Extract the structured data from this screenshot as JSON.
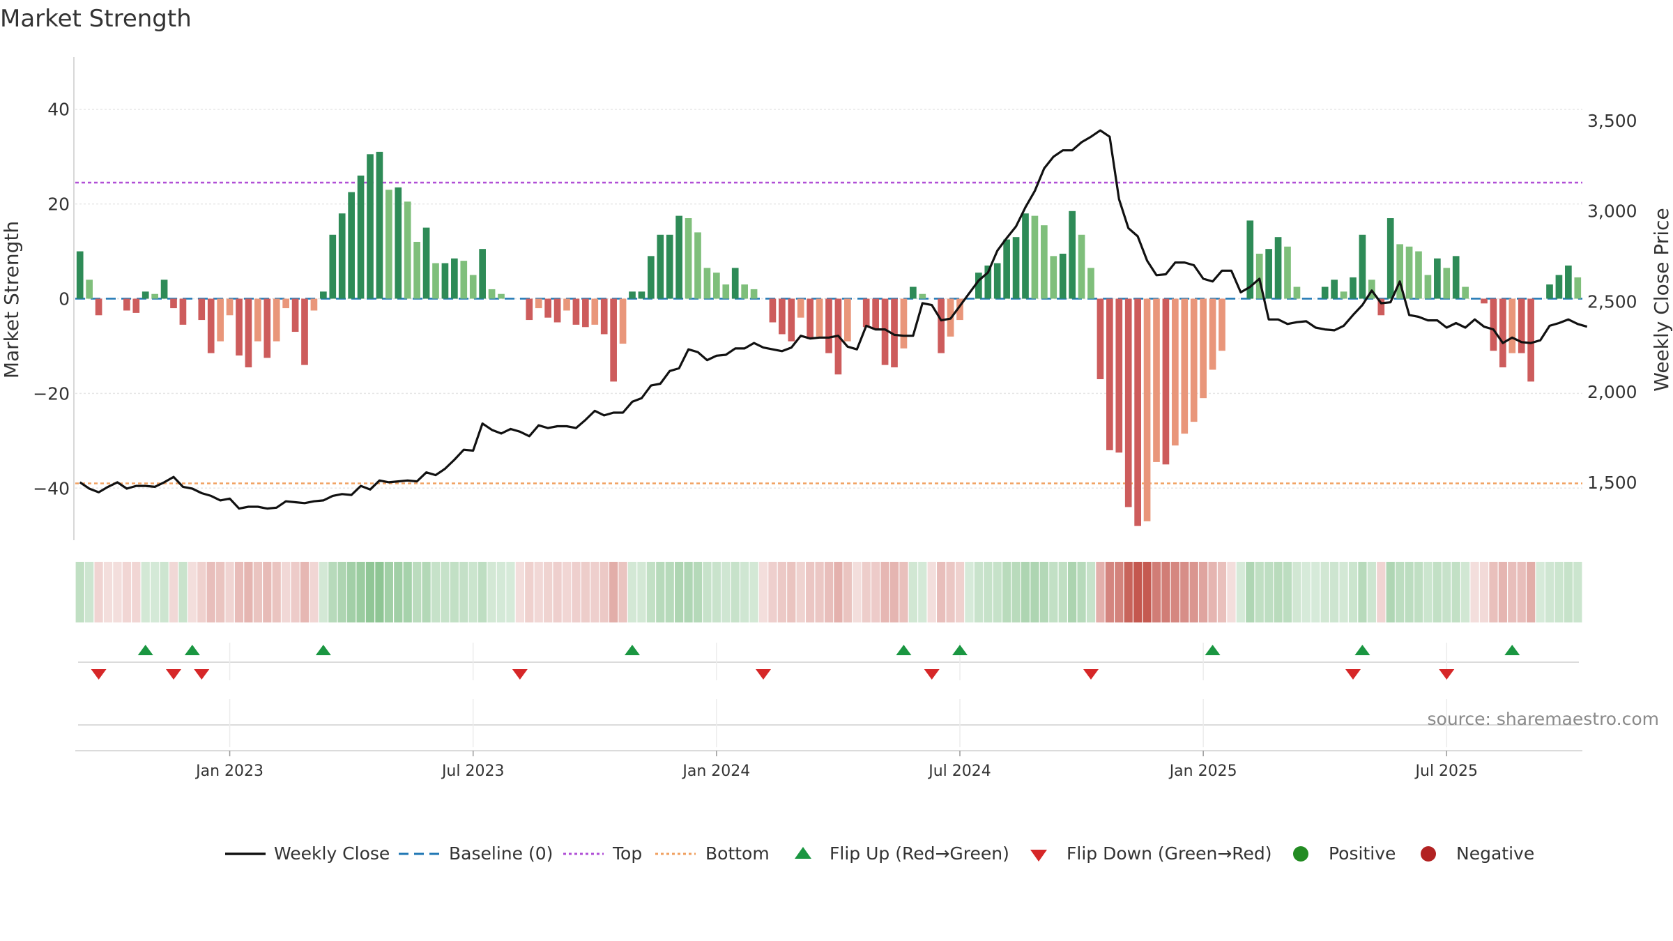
{
  "chart_data": {
    "type": "bar+line",
    "title": "Market Strength",
    "ylabel_left": "Market Strength",
    "ylabel_right": "Weekly Close Price",
    "source": "source: sharemaestro.com",
    "x_tick_labels": [
      "Jan 2023",
      "Jul 2023",
      "Jan 2024",
      "Jul 2024",
      "Jan 2025",
      "Jul 2025"
    ],
    "x_tick_weeks": [
      16,
      42,
      68,
      94,
      120,
      146
    ],
    "ylim_left": [
      -51,
      51
    ],
    "yticks_left": [
      40,
      20,
      0,
      -20,
      -40
    ],
    "ytick_labels_left": [
      "40",
      "20",
      "0",
      "−20",
      "−40"
    ],
    "ylim_right": [
      1180,
      3850
    ],
    "yticks_right": [
      3500,
      3000,
      2500,
      2000,
      1500
    ],
    "ytick_labels_right": [
      "3,500",
      "3,000",
      "2,500",
      "2,000",
      "1,500"
    ],
    "top_line": 24.5,
    "bottom_line": -39,
    "baseline": 0,
    "strength": [
      10,
      4,
      -3.5,
      0,
      0,
      -2.5,
      -3,
      1.5,
      1,
      4,
      -2,
      -5.5,
      0,
      -4.5,
      -11.5,
      -9,
      -3.5,
      -12,
      -14.5,
      -9,
      -12.5,
      -9,
      -2,
      -7,
      -14,
      -2.5,
      1.5,
      13.5,
      18,
      22.5,
      26,
      30.5,
      31,
      23,
      23.5,
      20.5,
      12,
      15,
      7.5,
      7.5,
      8.5,
      8,
      5,
      10.5,
      2,
      1,
      0,
      0,
      -4.5,
      -2,
      -4,
      -5,
      -2.5,
      -5.5,
      -6,
      -5.5,
      -7.5,
      -17.5,
      -9.5,
      1.5,
      1.5,
      9,
      13.5,
      13.5,
      17.5,
      17,
      14,
      6.5,
      5.5,
      3,
      6.5,
      3,
      2,
      0,
      -5,
      -7.5,
      -9,
      -4,
      -8.5,
      -8,
      -11.5,
      -16,
      -9,
      0,
      -6,
      -6.5,
      -14,
      -14.5,
      -10.5,
      2.5,
      1,
      0,
      -11.5,
      -8,
      -4.5,
      0,
      5.5,
      7,
      7.5,
      12.5,
      13,
      18,
      17.5,
      15.5,
      9,
      9.5,
      18.5,
      13.5,
      6.5,
      -17,
      -32,
      -32.5,
      -44,
      -48,
      -47,
      -34.5,
      -35,
      -31,
      -28.5,
      -26,
      -21,
      -15,
      -11,
      0,
      0,
      16.5,
      9.5,
      10.5,
      13,
      11,
      2.5,
      0,
      0,
      2.5,
      4,
      1.5,
      4.5,
      13.5,
      4,
      -3.5,
      17,
      11.5,
      11,
      10,
      5,
      8.5,
      6.5,
      9,
      2.5,
      0,
      -1,
      -11,
      -14.5,
      -11.5,
      -11.5,
      -17.5,
      0,
      3,
      5,
      7,
      4.5
    ],
    "close": [
      1500,
      1465,
      1445,
      1475,
      1500,
      1465,
      1480,
      1480,
      1475,
      1500,
      1530,
      1475,
      1465,
      1440,
      1425,
      1400,
      1410,
      1355,
      1365,
      1365,
      1355,
      1360,
      1395,
      1390,
      1385,
      1395,
      1400,
      1425,
      1435,
      1430,
      1480,
      1460,
      1510,
      1500,
      1505,
      1510,
      1505,
      1555,
      1540,
      1575,
      1625,
      1680,
      1675,
      1825,
      1790,
      1770,
      1795,
      1780,
      1755,
      1815,
      1800,
      1810,
      1810,
      1800,
      1845,
      1895,
      1870,
      1885,
      1885,
      1945,
      1965,
      2035,
      2045,
      2115,
      2130,
      2235,
      2220,
      2175,
      2200,
      2205,
      2240,
      2240,
      2270,
      2245,
      2235,
      2225,
      2245,
      2310,
      2295,
      2300,
      2300,
      2310,
      2250,
      2235,
      2365,
      2345,
      2345,
      2315,
      2310,
      2310,
      2490,
      2480,
      2395,
      2405,
      2475,
      2545,
      2615,
      2660,
      2780,
      2850,
      2915,
      3020,
      3110,
      3235,
      3300,
      3335,
      3335,
      3380,
      3410,
      3445,
      3410,
      3065,
      2905,
      2860,
      2725,
      2645,
      2650,
      2715,
      2715,
      2700,
      2625,
      2610,
      2670,
      2670,
      2550,
      2580,
      2625,
      2400,
      2400,
      2375,
      2385,
      2390,
      2355,
      2345,
      2340,
      2365,
      2425,
      2480,
      2560,
      2490,
      2495,
      2610,
      2425,
      2415,
      2395,
      2395,
      2355,
      2380,
      2355,
      2400,
      2360,
      2345,
      2270,
      2300,
      2275,
      2270,
      2285,
      2365,
      2380,
      2400,
      2375,
      2360
    ],
    "strip": [
      {
        "s": "g",
        "v": 10
      },
      {
        "s": "g",
        "v": 4
      },
      {
        "s": "r",
        "v": -3.5
      },
      {
        "s": "r",
        "v": 0
      },
      {
        "s": "r",
        "v": 0
      },
      {
        "s": "r",
        "v": -2.5
      },
      {
        "s": "r",
        "v": -3
      },
      {
        "s": "g",
        "v": 1.5
      },
      {
        "s": "g",
        "v": 1
      },
      {
        "s": "g",
        "v": 4
      },
      {
        "s": "r",
        "v": -2
      },
      {
        "s": "g",
        "v": -5.5
      },
      {
        "s": "r",
        "v": 0
      },
      {
        "s": "r",
        "v": -4.5
      },
      {
        "s": "r",
        "v": -11.5
      },
      {
        "s": "r",
        "v": -9
      },
      {
        "s": "r",
        "v": -3.5
      },
      {
        "s": "r",
        "v": -12
      },
      {
        "s": "r",
        "v": -14.5
      },
      {
        "s": "r",
        "v": -9
      },
      {
        "s": "r",
        "v": -12.5
      },
      {
        "s": "r",
        "v": -9
      },
      {
        "s": "r",
        "v": -2
      },
      {
        "s": "r",
        "v": -7
      },
      {
        "s": "r",
        "v": -14
      },
      {
        "s": "r",
        "v": -2.5
      },
      {
        "s": "g",
        "v": 1.5
      },
      {
        "s": "g",
        "v": 13.5
      },
      {
        "s": "g",
        "v": 18
      },
      {
        "s": "g",
        "v": 22.5
      },
      {
        "s": "g",
        "v": 26
      },
      {
        "s": "g",
        "v": 30.5
      },
      {
        "s": "g",
        "v": 31
      },
      {
        "s": "g",
        "v": 23
      },
      {
        "s": "g",
        "v": 23.5
      },
      {
        "s": "g",
        "v": 20.5
      },
      {
        "s": "g",
        "v": 12
      },
      {
        "s": "g",
        "v": 15
      },
      {
        "s": "g",
        "v": 7.5
      },
      {
        "s": "g",
        "v": 7.5
      },
      {
        "s": "g",
        "v": 8.5
      },
      {
        "s": "g",
        "v": 8
      },
      {
        "s": "g",
        "v": 5
      },
      {
        "s": "g",
        "v": 10.5
      },
      {
        "s": "g",
        "v": 2
      },
      {
        "s": "g",
        "v": 1
      },
      {
        "s": "g",
        "v": 0
      },
      {
        "s": "r",
        "v": 0
      },
      {
        "s": "r",
        "v": -4.5
      },
      {
        "s": "r",
        "v": -2
      },
      {
        "s": "r",
        "v": -4
      },
      {
        "s": "r",
        "v": -5
      },
      {
        "s": "r",
        "v": -2.5
      },
      {
        "s": "r",
        "v": -5.5
      },
      {
        "s": "r",
        "v": -6
      },
      {
        "s": "r",
        "v": -5.5
      },
      {
        "s": "r",
        "v": -7.5
      },
      {
        "s": "r",
        "v": -17.5
      },
      {
        "s": "r",
        "v": -9.5
      },
      {
        "s": "g",
        "v": 1.5
      },
      {
        "s": "g",
        "v": 1.5
      },
      {
        "s": "g",
        "v": 9
      },
      {
        "s": "g",
        "v": 13.5
      },
      {
        "s": "g",
        "v": 13.5
      },
      {
        "s": "g",
        "v": 17.5
      },
      {
        "s": "g",
        "v": 17
      },
      {
        "s": "g",
        "v": 14
      },
      {
        "s": "g",
        "v": 6.5
      },
      {
        "s": "g",
        "v": 5.5
      },
      {
        "s": "g",
        "v": 3
      },
      {
        "s": "g",
        "v": 6.5
      },
      {
        "s": "g",
        "v": 3
      },
      {
        "s": "g",
        "v": 2
      },
      {
        "s": "r",
        "v": 0
      },
      {
        "s": "r",
        "v": -5
      },
      {
        "s": "r",
        "v": -7.5
      },
      {
        "s": "r",
        "v": -9
      },
      {
        "s": "r",
        "v": -4
      },
      {
        "s": "r",
        "v": -8.5
      },
      {
        "s": "r",
        "v": -8
      },
      {
        "s": "r",
        "v": -11.5
      },
      {
        "s": "r",
        "v": -16
      },
      {
        "s": "r",
        "v": -9
      },
      {
        "s": "r",
        "v": 0
      },
      {
        "s": "r",
        "v": -6
      },
      {
        "s": "r",
        "v": -6.5
      },
      {
        "s": "r",
        "v": -14
      },
      {
        "s": "r",
        "v": -14.5
      },
      {
        "s": "r",
        "v": -10.5
      },
      {
        "s": "g",
        "v": 2.5
      },
      {
        "s": "g",
        "v": 1
      },
      {
        "s": "r",
        "v": 0
      },
      {
        "s": "r",
        "v": -11.5
      },
      {
        "s": "r",
        "v": -8
      },
      {
        "s": "r",
        "v": -4.5
      },
      {
        "s": "g",
        "v": 0
      },
      {
        "s": "g",
        "v": 5.5
      },
      {
        "s": "g",
        "v": 7
      },
      {
        "s": "g",
        "v": 7.5
      },
      {
        "s": "g",
        "v": 12.5
      },
      {
        "s": "g",
        "v": 13
      },
      {
        "s": "g",
        "v": 18
      },
      {
        "s": "g",
        "v": 17.5
      },
      {
        "s": "g",
        "v": 15.5
      },
      {
        "s": "g",
        "v": 9
      },
      {
        "s": "g",
        "v": 9.5
      },
      {
        "s": "g",
        "v": 18.5
      },
      {
        "s": "g",
        "v": 13.5
      },
      {
        "s": "g",
        "v": 6.5
      },
      {
        "s": "r",
        "v": -17
      },
      {
        "s": "r",
        "v": -32
      },
      {
        "s": "r",
        "v": -32.5
      },
      {
        "s": "r",
        "v": -44
      },
      {
        "s": "r",
        "v": -48
      },
      {
        "s": "r",
        "v": -47
      },
      {
        "s": "r",
        "v": -34.5
      },
      {
        "s": "r",
        "v": -35
      },
      {
        "s": "r",
        "v": -31
      },
      {
        "s": "r",
        "v": -28.5
      },
      {
        "s": "r",
        "v": -26
      },
      {
        "s": "r",
        "v": -21
      },
      {
        "s": "r",
        "v": -15
      },
      {
        "s": "r",
        "v": -11
      },
      {
        "s": "r",
        "v": 0
      },
      {
        "s": "g",
        "v": 0
      },
      {
        "s": "g",
        "v": 16.5
      },
      {
        "s": "g",
        "v": 9.5
      },
      {
        "s": "g",
        "v": 10.5
      },
      {
        "s": "g",
        "v": 13
      },
      {
        "s": "g",
        "v": 11
      },
      {
        "s": "g",
        "v": 2.5
      },
      {
        "s": "g",
        "v": 0
      },
      {
        "s": "g",
        "v": 0
      },
      {
        "s": "g",
        "v": 2.5
      },
      {
        "s": "g",
        "v": 4
      },
      {
        "s": "g",
        "v": 1.5
      },
      {
        "s": "g",
        "v": 4.5
      },
      {
        "s": "g",
        "v": 13.5
      },
      {
        "s": "g",
        "v": 4
      },
      {
        "s": "r",
        "v": -3.5
      },
      {
        "s": "g",
        "v": 17
      },
      {
        "s": "g",
        "v": 11.5
      },
      {
        "s": "g",
        "v": 11
      },
      {
        "s": "g",
        "v": 10
      },
      {
        "s": "g",
        "v": 5
      },
      {
        "s": "g",
        "v": 8.5
      },
      {
        "s": "g",
        "v": 6.5
      },
      {
        "s": "g",
        "v": 9
      },
      {
        "s": "g",
        "v": 2.5
      },
      {
        "s": "r",
        "v": 0
      },
      {
        "s": "r",
        "v": -1
      },
      {
        "s": "r",
        "v": -11
      },
      {
        "s": "r",
        "v": -14.5
      },
      {
        "s": "r",
        "v": -11.5
      },
      {
        "s": "r",
        "v": -11.5
      },
      {
        "s": "r",
        "v": -17.5
      },
      {
        "s": "g",
        "v": 0
      },
      {
        "s": "g",
        "v": 3
      },
      {
        "s": "g",
        "v": 5
      },
      {
        "s": "g",
        "v": 7
      },
      {
        "s": "g",
        "v": 4.5
      }
    ],
    "flip_up_weeks": [
      7,
      12,
      26,
      59,
      88,
      94,
      121,
      137,
      153
    ],
    "flip_down_weeks": [
      2,
      10,
      13,
      47,
      73,
      91,
      108,
      136,
      146
    ],
    "legend": [
      "Weekly Close",
      "Baseline (0)",
      "Top",
      "Bottom",
      "Flip Up (Red→Green)",
      "Flip Down (Green→Red)",
      "Positive",
      "Negative"
    ]
  },
  "colors": {
    "strong_green": "#2e8b57",
    "light_green": "#7fbf7b",
    "strong_red": "#cd5c5c",
    "light_red": "#e9967a",
    "line": "#111111",
    "baseline": "#1f77b4",
    "top": "#b04fd6",
    "bottom": "#f0a060",
    "flip_up": "#1a9641",
    "flip_down": "#d62728",
    "positive": "#228b22",
    "negative": "#b22222"
  }
}
